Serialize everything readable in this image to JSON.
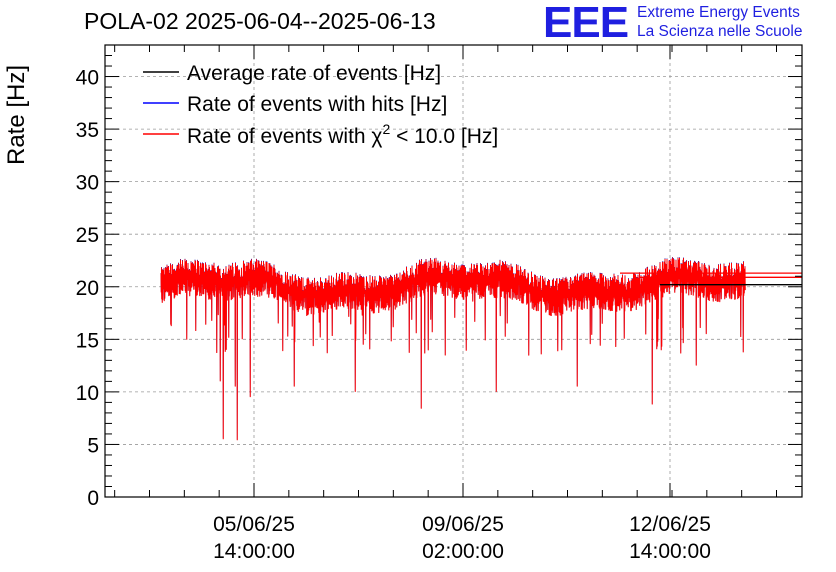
{
  "header": {
    "title": "POLA-02 2025-06-04--2025-06-13",
    "logo_text": "EEE",
    "logo_line1": "Extreme Energy Events",
    "logo_line2": "La Scienza nelle Scuole"
  },
  "colors": {
    "average": "#000000",
    "hits": "#0000ff",
    "chi2": "#ff0000",
    "logo": "#1f1fe0",
    "grid": "#9a9a9a"
  },
  "chart_data": {
    "type": "line",
    "title": "POLA-02 2025-06-04--2025-06-13",
    "xlabel": "",
    "ylabel": "Rate [Hz]",
    "ylim": [
      0,
      43
    ],
    "yticks": [
      0,
      5,
      10,
      15,
      20,
      25,
      30,
      35,
      40
    ],
    "xticks": [
      {
        "date": "05/06/25",
        "time": "14:00:00"
      },
      {
        "date": "09/06/25",
        "time": "02:00:00"
      },
      {
        "date": "12/06/25",
        "time": "14:00:00"
      }
    ],
    "grid": true,
    "legend_position": "top-left",
    "series": [
      {
        "name": "Average rate of events [Hz]",
        "color": "#000000",
        "baseline": 20.4
      },
      {
        "name": "Rate of events with hits [Hz]",
        "color": "#0000ff",
        "baseline": 20.4
      },
      {
        "name": "Rate of events with χ² < 10.0 [Hz]",
        "color": "#ff0000",
        "baseline": 20.4
      }
    ],
    "chi2_label_prefix": "Rate of events with χ",
    "chi2_label_sup": "2",
    "chi2_label_suffix": " < 10.0 [Hz]",
    "dips": [
      {
        "x": "05/06/25 00:20",
        "y": 11
      },
      {
        "x": "05/06/25 01:40",
        "y": 5.5
      },
      {
        "x": "05/06/25 02:40",
        "y": 14
      },
      {
        "x": "05/06/25 06:10",
        "y": 10.5
      },
      {
        "x": "05/06/25 07:20",
        "y": 5.4
      },
      {
        "x": "05/06/25 12:30",
        "y": 9.5
      },
      {
        "x": "06/06/25 06:10",
        "y": 10.5
      },
      {
        "x": "07/06/25 06:40",
        "y": 10
      },
      {
        "x": "08/06/25 09:30",
        "y": 8.4
      },
      {
        "x": "09/06/25 15:40",
        "y": 10
      },
      {
        "x": "11/06/25 00:20",
        "y": 10.5
      },
      {
        "x": "12/06/25 06:40",
        "y": 8.8
      },
      {
        "x": "13/06/25 00:40",
        "y": 12.5
      }
    ],
    "tail_levels": [
      21.3,
      20.9,
      20.2
    ]
  }
}
